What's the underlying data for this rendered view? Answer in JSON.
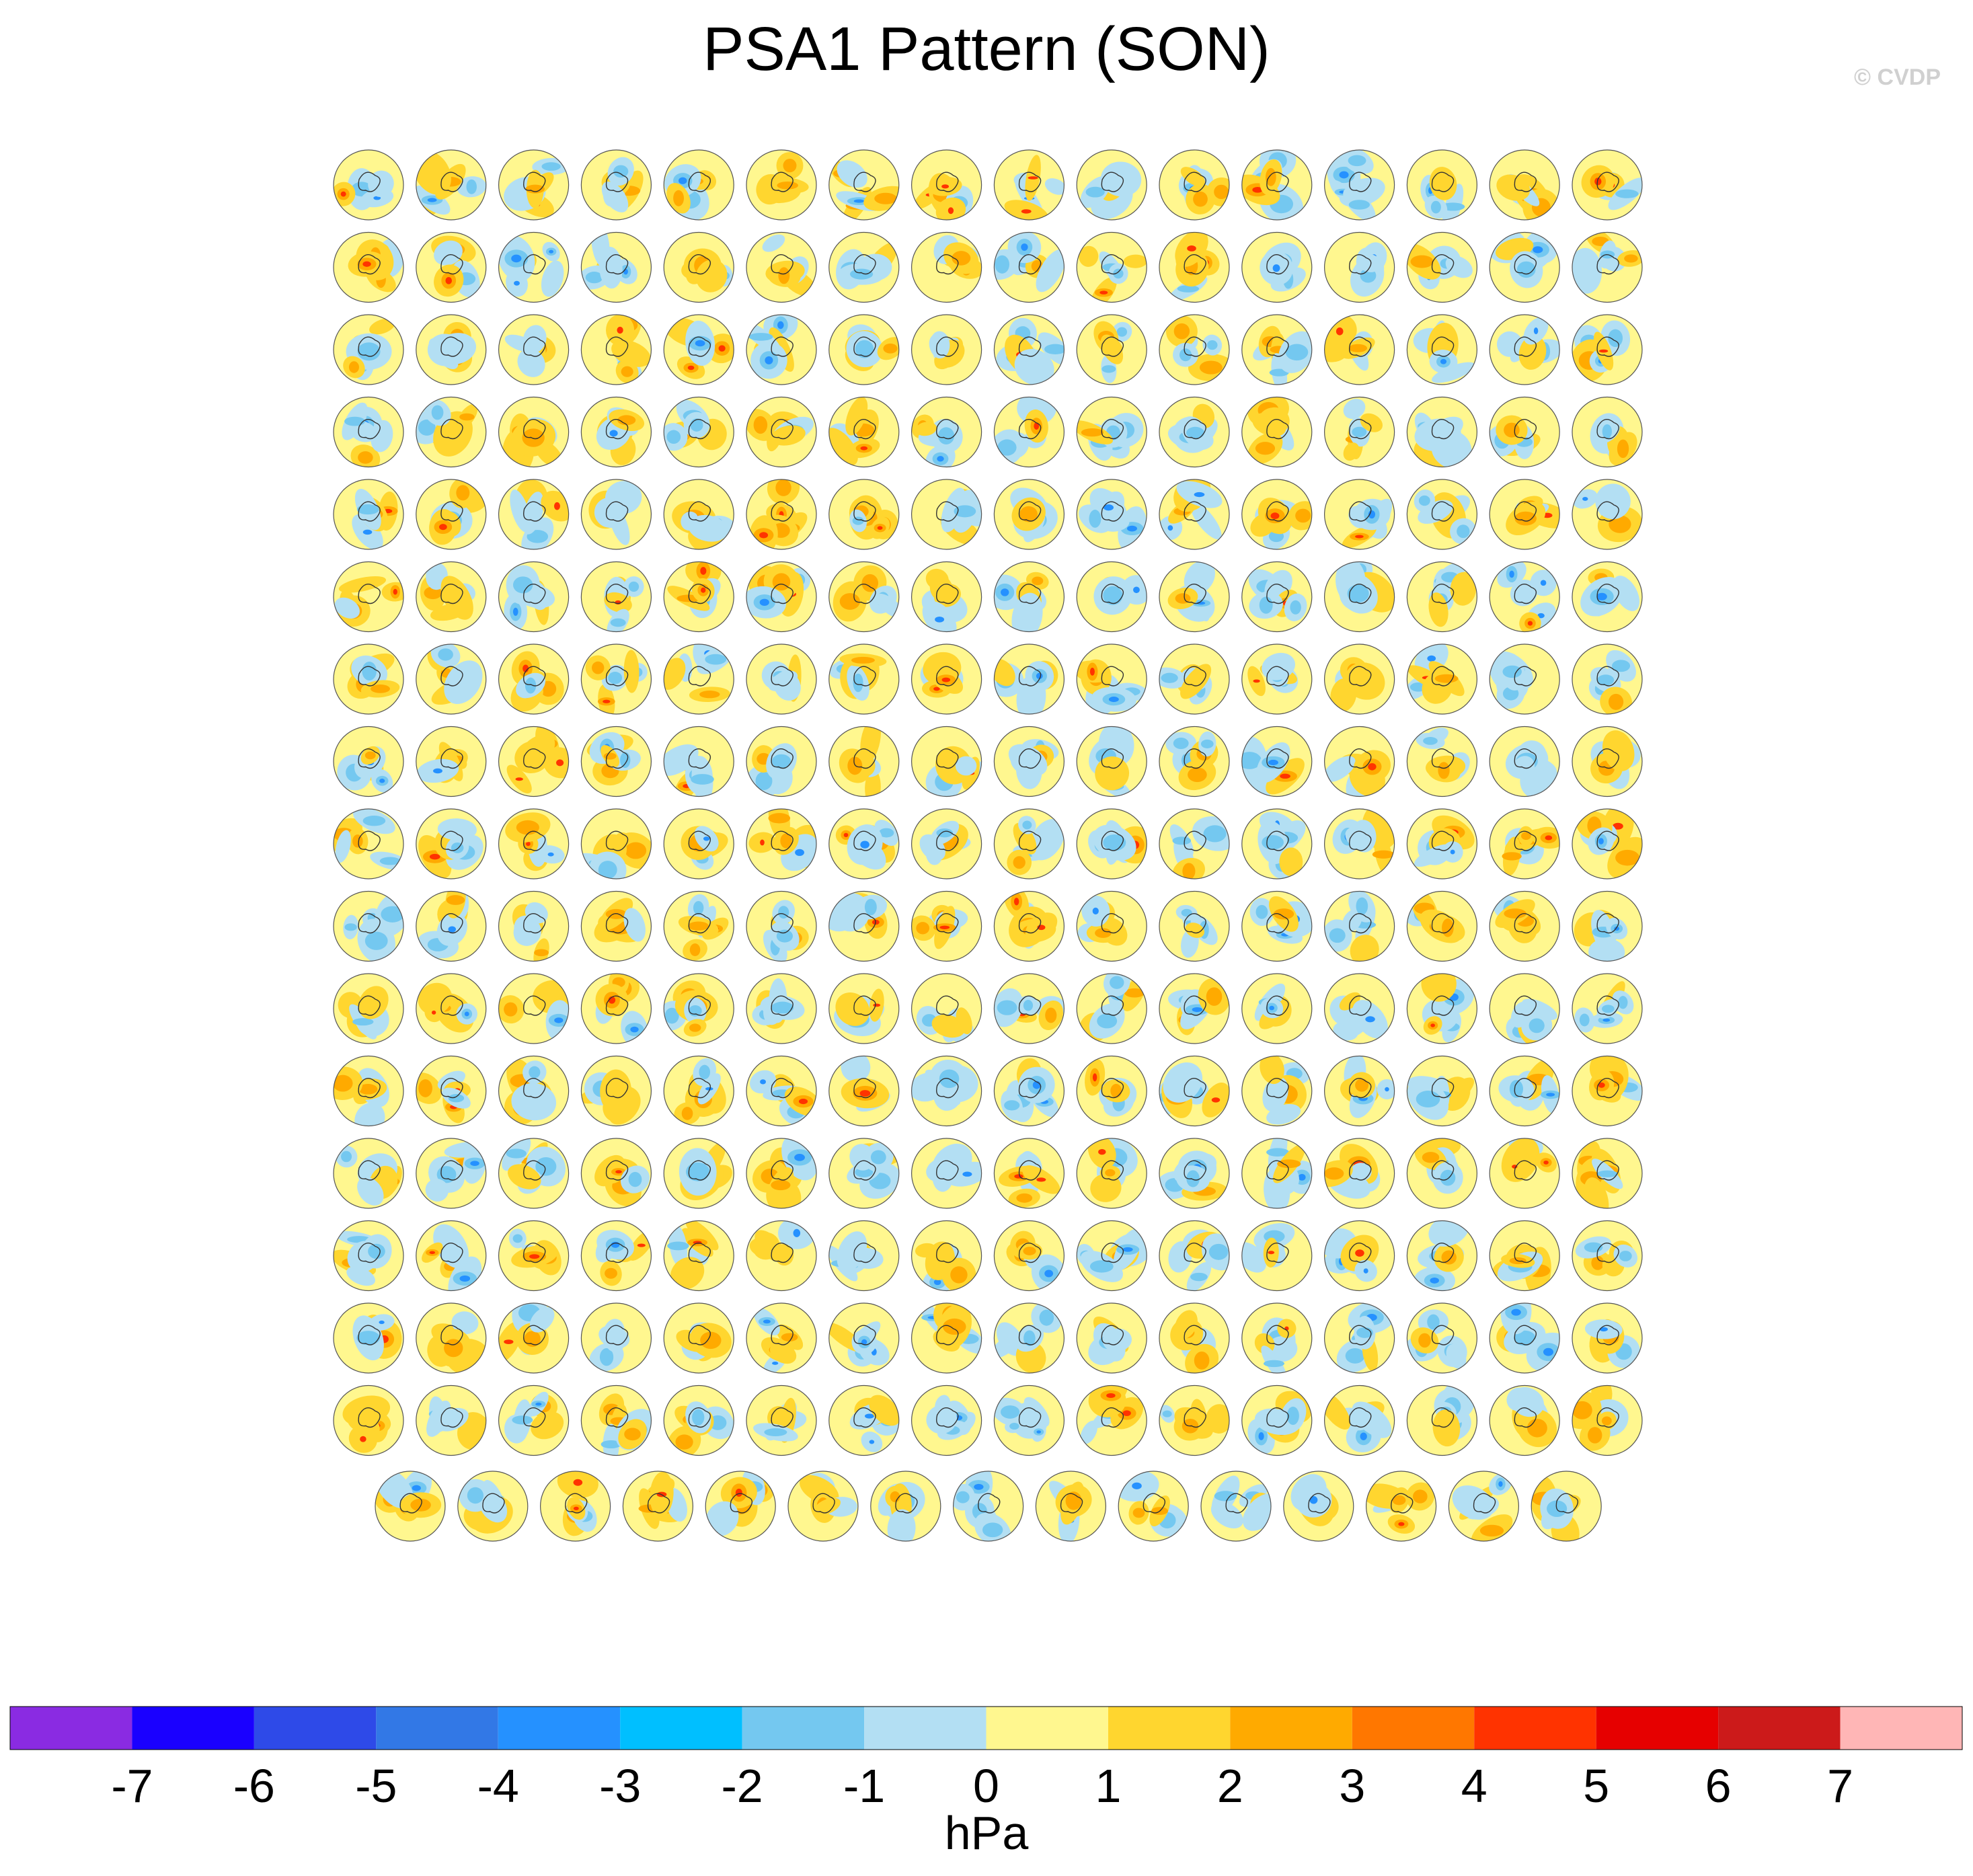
{
  "title": "PSA1 Pattern (SON)",
  "credit": "© CVDP",
  "units": "hPa",
  "chart_data": {
    "type": "heatmap",
    "title": "PSA1 Pattern (SON)",
    "description_level": "grid of polar stereographic SLP regression maps",
    "panel_rows": 17,
    "panels_per_full_row": 16,
    "last_row_panels": 15,
    "total_panels": 271,
    "colorbar": {
      "label": "hPa",
      "ticks": [
        "-7",
        "-6",
        "-5",
        "-4",
        "-3",
        "-2",
        "-1",
        "0",
        "1",
        "2",
        "3",
        "4",
        "5",
        "6",
        "7"
      ],
      "colors": [
        "#8a2be2",
        "#1a00ff",
        "#2e4ae8",
        "#3278e6",
        "#2591ff",
        "#00bfff",
        "#74c8f0",
        "#b3dff3",
        "#fff78f",
        "#ffd62f",
        "#ffaa00",
        "#ff7700",
        "#ff3300",
        "#e60000",
        "#cc1a1a",
        "#ffb6b6"
      ]
    }
  }
}
